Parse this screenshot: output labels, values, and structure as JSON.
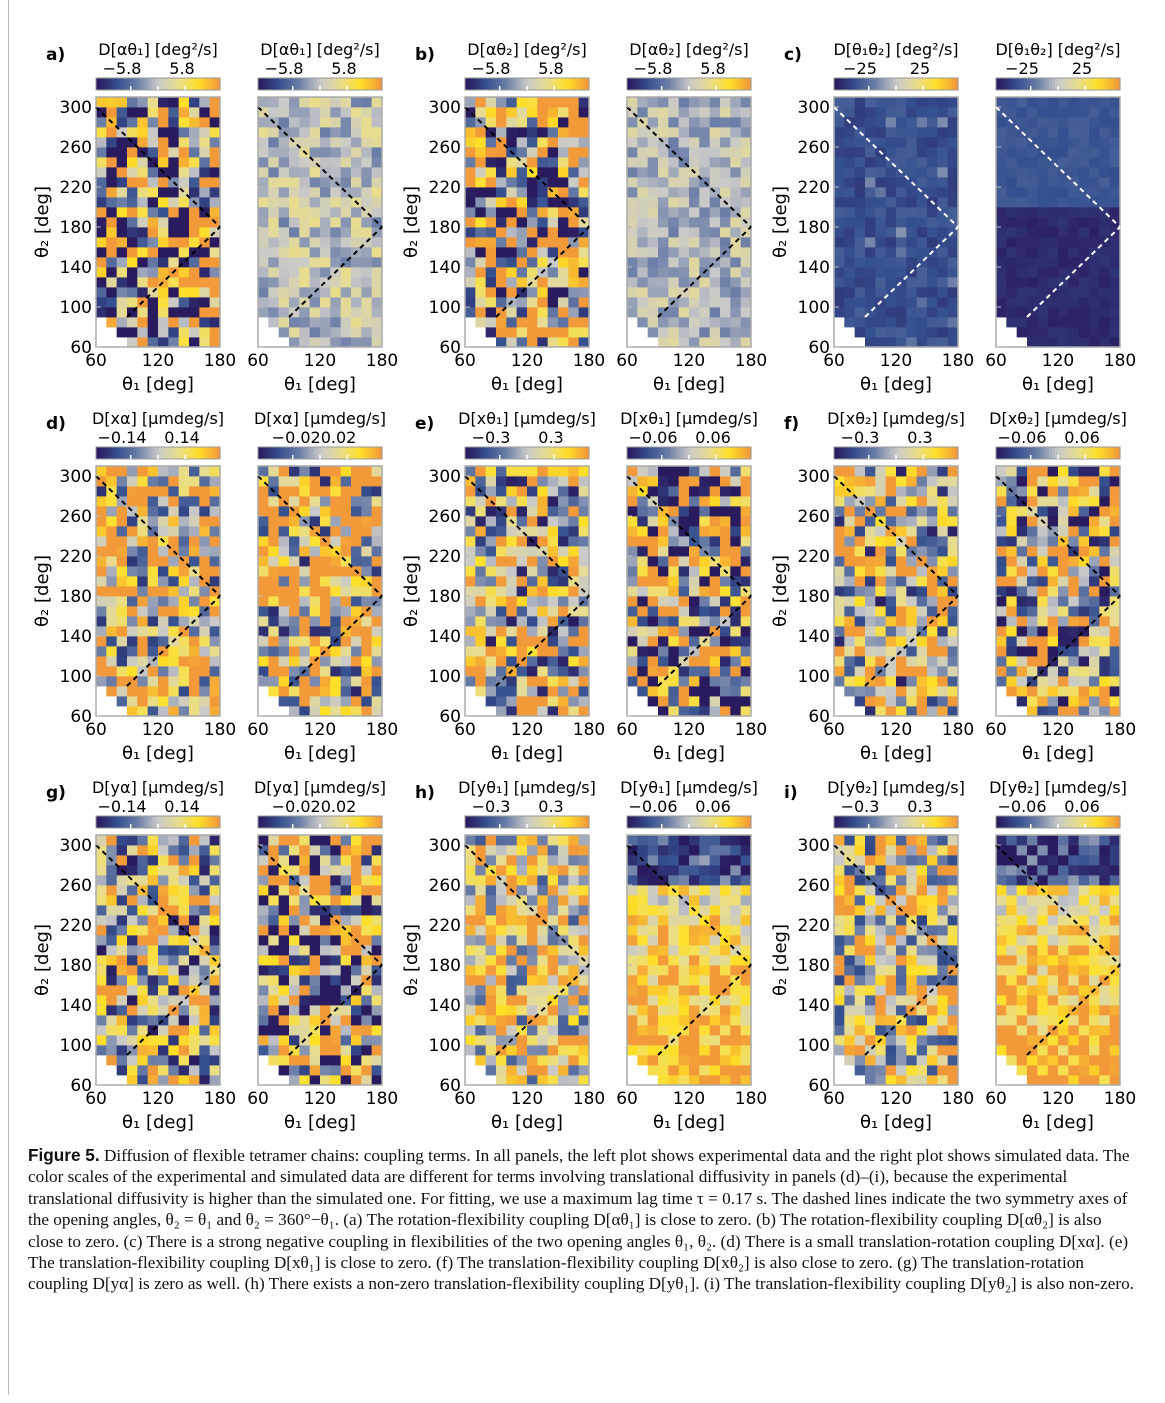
{
  "axis_labels": {
    "x": "θ₁ [deg]",
    "y": "θ₂ [deg]"
  },
  "chart_data": [
    {
      "type": "heatmap",
      "panel": "a)",
      "side": "experiment",
      "cbar_title": "D[αθ₁] [deg²/s]",
      "cbar_ticks": [
        "−5.8",
        "5.8"
      ],
      "cbar_range": [
        -5.8,
        5.8
      ],
      "pattern": "noisy",
      "mean": 0.0,
      "spread": 1.7,
      "seed": 11
    },
    {
      "type": "heatmap",
      "panel": "",
      "side": "simulation",
      "cbar_title": "D[αθ₁] [deg²/s]",
      "cbar_ticks": [
        "−5.8",
        "5.8"
      ],
      "cbar_range": [
        -5.8,
        5.8
      ],
      "pattern": "noisy",
      "mean": 0.0,
      "spread": 0.35,
      "seed": 12
    },
    {
      "type": "heatmap",
      "panel": "b)",
      "side": "experiment",
      "cbar_title": "D[αθ₂] [deg²/s]",
      "cbar_ticks": [
        "−5.8",
        "5.8"
      ],
      "cbar_range": [
        -5.8,
        5.8
      ],
      "pattern": "noisy",
      "mean": 0.3,
      "spread": 1.7,
      "seed": 21
    },
    {
      "type": "heatmap",
      "panel": "",
      "side": "simulation",
      "cbar_title": "D[αθ₂] [deg²/s]",
      "cbar_ticks": [
        "−5.8",
        "5.8"
      ],
      "cbar_range": [
        -5.8,
        5.8
      ],
      "pattern": "noisy",
      "mean": -0.05,
      "spread": 0.3,
      "seed": 22
    },
    {
      "type": "heatmap",
      "panel": "c)",
      "side": "experiment",
      "cbar_title": "D[θ₁θ₂] [deg²/s]",
      "cbar_ticks": [
        "−25",
        "25"
      ],
      "cbar_range": [
        -25,
        25
      ],
      "pattern": "negative",
      "mean": -0.68,
      "spread": 0.12,
      "seed": 31
    },
    {
      "type": "heatmap",
      "panel": "",
      "side": "simulation",
      "cbar_title": "D[θ₁θ₂] [deg²/s]",
      "cbar_ticks": [
        "−25",
        "25"
      ],
      "cbar_range": [
        -25,
        25
      ],
      "pattern": "negative-gradient",
      "mean": -0.8,
      "spread": 0.05,
      "seed": 32
    },
    {
      "type": "heatmap",
      "panel": "d)",
      "side": "experiment",
      "cbar_title": "D[xα] [µmdeg/s]",
      "cbar_ticks": [
        "−0.14",
        "0.14"
      ],
      "cbar_range": [
        -0.14,
        0.14
      ],
      "pattern": "noisy",
      "mean": 0.45,
      "spread": 1.3,
      "seed": 41
    },
    {
      "type": "heatmap",
      "panel": "",
      "side": "simulation",
      "cbar_title": "D[xα] [µmdeg/s]",
      "cbar_ticks": [
        "−0.020.02"
      ],
      "cbar_range": [
        -0.02,
        0.02
      ],
      "pattern": "noisy",
      "mean": 0.45,
      "spread": 1.4,
      "seed": 42
    },
    {
      "type": "heatmap",
      "panel": "e)",
      "side": "experiment",
      "cbar_title": "D[xθ₁] [µmdeg/s]",
      "cbar_ticks": [
        "−0.3",
        "0.3"
      ],
      "cbar_range": [
        -0.3,
        0.3
      ],
      "pattern": "noisy",
      "mean": 0.2,
      "spread": 1.2,
      "seed": 51
    },
    {
      "type": "heatmap",
      "panel": "",
      "side": "simulation",
      "cbar_title": "D[xθ₁] [µmdeg/s]",
      "cbar_ticks": [
        "−0.06",
        "0.06"
      ],
      "cbar_range": [
        -0.06,
        0.06
      ],
      "pattern": "noisy",
      "mean": 0.1,
      "spread": 1.5,
      "seed": 52
    },
    {
      "type": "heatmap",
      "panel": "f)",
      "side": "experiment",
      "cbar_title": "D[xθ₂] [µmdeg/s]",
      "cbar_ticks": [
        "−0.3",
        "0.3"
      ],
      "cbar_range": [
        -0.3,
        0.3
      ],
      "pattern": "noisy",
      "mean": 0.2,
      "spread": 1.2,
      "seed": 61
    },
    {
      "type": "heatmap",
      "panel": "",
      "side": "simulation",
      "cbar_title": "D[xθ₂] [µmdeg/s]",
      "cbar_ticks": [
        "−0.06",
        "0.06"
      ],
      "cbar_range": [
        -0.06,
        0.06
      ],
      "pattern": "noisy",
      "mean": 0.2,
      "spread": 1.4,
      "seed": 62
    },
    {
      "type": "heatmap",
      "panel": "g)",
      "side": "experiment",
      "cbar_title": "D[yα] [µmdeg/s]",
      "cbar_ticks": [
        "−0.14",
        "0.14"
      ],
      "cbar_range": [
        -0.14,
        0.14
      ],
      "pattern": "noisy",
      "mean": 0.15,
      "spread": 1.2,
      "seed": 71
    },
    {
      "type": "heatmap",
      "panel": "",
      "side": "simulation",
      "cbar_title": "D[yα] [µmdeg/s]",
      "cbar_ticks": [
        "−0.020.02"
      ],
      "cbar_range": [
        -0.02,
        0.02
      ],
      "pattern": "noisy",
      "mean": 0.05,
      "spread": 1.4,
      "seed": 72
    },
    {
      "type": "heatmap",
      "panel": "h)",
      "side": "experiment",
      "cbar_title": "D[yθ₁] [µmdeg/s]",
      "cbar_ticks": [
        "−0.3",
        "0.3"
      ],
      "cbar_range": [
        -0.3,
        0.3
      ],
      "pattern": "noisy",
      "mean": 0.4,
      "spread": 1.0,
      "seed": 81
    },
    {
      "type": "heatmap",
      "panel": "",
      "side": "simulation",
      "cbar_title": "D[yθ₁] [µmdeg/s]",
      "cbar_ticks": [
        "−0.06",
        "0.06"
      ],
      "cbar_range": [
        -0.06,
        0.06
      ],
      "pattern": "bottom-positive",
      "mean": 0.2,
      "spread": 0.9,
      "seed": 82
    },
    {
      "type": "heatmap",
      "panel": "i)",
      "side": "experiment",
      "cbar_title": "D[yθ₂] [µmdeg/s]",
      "cbar_ticks": [
        "−0.3",
        "0.3"
      ],
      "cbar_range": [
        -0.3,
        0.3
      ],
      "pattern": "noisy",
      "mean": 0.35,
      "spread": 1.1,
      "seed": 91
    },
    {
      "type": "heatmap",
      "panel": "",
      "side": "simulation",
      "cbar_title": "D[yθ₂] [µmdeg/s]",
      "cbar_ticks": [
        "−0.06",
        "0.06"
      ],
      "cbar_range": [
        -0.06,
        0.06
      ],
      "pattern": "bottom-positive",
      "mean": 0.1,
      "spread": 0.9,
      "seed": 92
    }
  ],
  "axes": {
    "x_ticks": [
      "60",
      "120",
      "180"
    ],
    "y_ticks": [
      "60",
      "100",
      "140",
      "180",
      "220",
      "260",
      "300"
    ],
    "xlim": [
      60,
      180
    ],
    "ylim": [
      60,
      310
    ],
    "bin_size_deg": 10,
    "symmetry_lines": [
      "θ₂ = θ₁",
      "θ₂ = 360° − θ₁"
    ]
  },
  "colormap_stops": [
    "#2a1a5e",
    "#35508f",
    "#6d7fa8",
    "#c9c9c9",
    "#e8dd8f",
    "#ffe026",
    "#f29a3a"
  ],
  "caption": {
    "label": "Figure 5.",
    "text": " Diffusion of flexible tetramer chains: coupling terms. In all panels, the left plot shows experimental data and the right plot shows simulated data. The color scales of the experimental and simulated data are different for terms involving translational diffusivity in panels (d)–(i), because the experimental translational diffusivity is higher than the simulated one. For fitting, we use a maximum lag time τ = 0.17 s. The dashed lines indicate the two symmetry axes of the opening angles, θ₂ = θ₁ and θ₂ = 360°−θ₁. (a) The rotation-flexibility coupling D[αθ₁] is close to zero. (b) The rotation-flexibility coupling D[αθ₂] is also close to zero. (c) There is a strong negative coupling in flexibilities of the two opening angles θ₁, θ₂. (d) There is a small translation-rotation coupling D[xα]. (e) The translation-flexibility coupling D[xθ₁] is close to zero. (f) The translation-flexibility coupling D[xθ₂] is also close to zero. (g) The translation-rotation coupling D[yα] is zero as well. (h) There exists a non-zero translation-flexibility coupling D[yθ₁]. (i) The translation-flexibility coupling D[yθ₂] is also non-zero."
  }
}
